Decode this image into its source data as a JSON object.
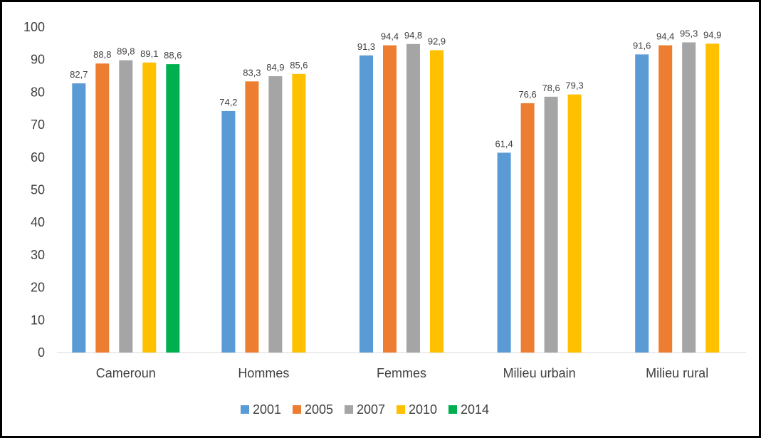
{
  "chart_data": {
    "type": "bar",
    "title": "",
    "xlabel": "",
    "ylabel": "",
    "ylim": [
      0,
      100
    ],
    "yticks": [
      0,
      10,
      20,
      30,
      40,
      50,
      60,
      70,
      80,
      90,
      100
    ],
    "grid": false,
    "legend_position": "bottom",
    "categories": [
      "Cameroun",
      "Hommes",
      "Femmes",
      "Milieu urbain",
      "Milieu rural"
    ],
    "series": [
      {
        "name": "2001",
        "color": "#5B9BD5",
        "values": [
          82.7,
          74.2,
          91.3,
          61.4,
          91.6
        ],
        "labels": [
          "82,7",
          "74,2",
          "91,3",
          "61,4",
          "91,6"
        ]
      },
      {
        "name": "2005",
        "color": "#ED7D31",
        "values": [
          88.8,
          83.3,
          94.4,
          76.6,
          94.4
        ],
        "labels": [
          "88,8",
          "83,3",
          "94,4",
          "76,6",
          "94,4"
        ]
      },
      {
        "name": "2007",
        "color": "#A5A5A5",
        "values": [
          89.8,
          84.9,
          94.8,
          78.6,
          95.3
        ],
        "labels": [
          "89,8",
          "84,9",
          "94,8",
          "78,6",
          "95,3"
        ]
      },
      {
        "name": "2010",
        "color": "#FFC000",
        "values": [
          89.1,
          85.6,
          92.9,
          79.3,
          94.9
        ],
        "labels": [
          "89,1",
          "85,6",
          "92,9",
          "79,3",
          "94,9"
        ]
      },
      {
        "name": "2014",
        "color": "#00B050",
        "values": [
          88.6,
          null,
          null,
          null,
          null
        ],
        "labels": [
          "88,6",
          null,
          null,
          null,
          null
        ]
      }
    ]
  }
}
